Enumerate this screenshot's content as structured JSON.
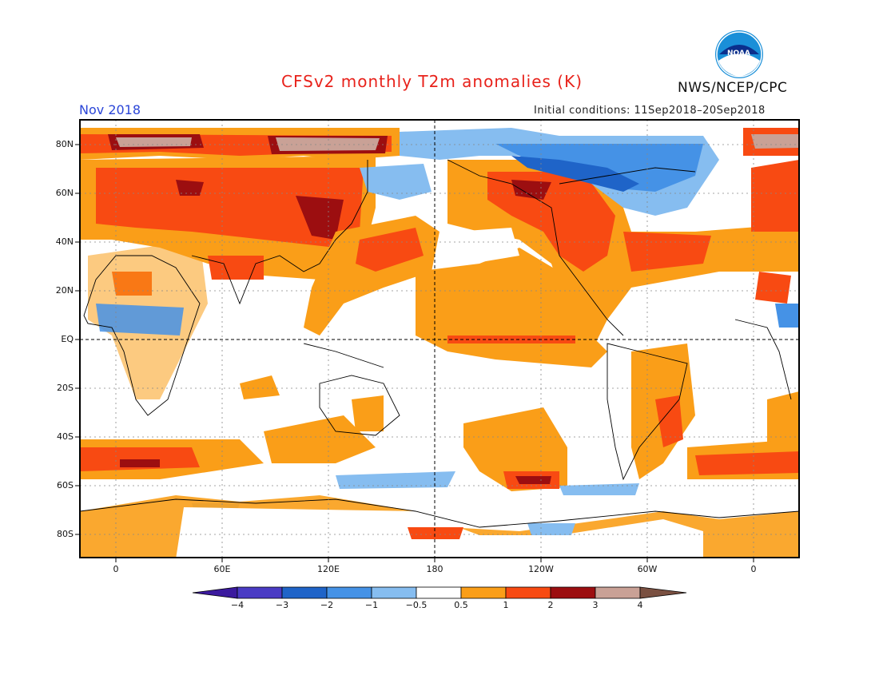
{
  "title": "CFSv2 monthly T2m anomalies (K)",
  "valid_month": "Nov 2018",
  "initial_conditions": "Initial conditions: 11Sep2018–20Sep2018",
  "agency": "NWS/NCEP/CPC",
  "logo_text": "NOAA",
  "lat_labels": [
    "80N",
    "60N",
    "40N",
    "20N",
    "EQ",
    "20S",
    "40S",
    "60S",
    "80S"
  ],
  "lon_labels": [
    "0",
    "60E",
    "120E",
    "180",
    "120W",
    "60W",
    "0"
  ],
  "colorbar_labels": [
    "−4",
    "−3",
    "−2",
    "−1",
    "−0.5",
    "0.5",
    "1",
    "2",
    "3",
    "4"
  ],
  "colors": {
    "cold4": "#3b1a9e",
    "cold3": "#4a3bc4",
    "cold2": "#1f64c8",
    "cold1": "#4592e6",
    "cold05": "#86bdf0",
    "neutral": "#ffffff",
    "warm05": "#fa9e18",
    "warm1": "#f84a12",
    "warm2": "#9c0e10",
    "warm3": "#c9a196",
    "warm4": "#7a5041"
  }
}
